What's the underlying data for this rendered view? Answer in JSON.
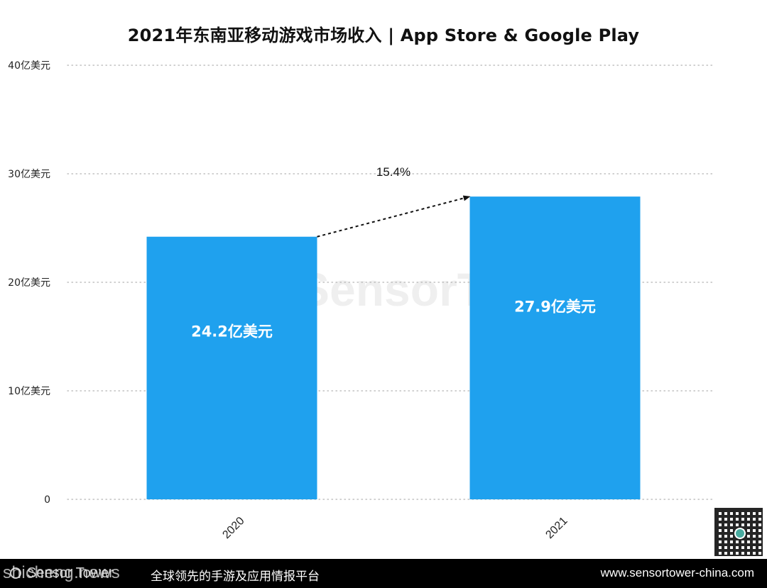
{
  "title": "2021年东南亚移动游戏市场收入 | App Store & Google Play",
  "chart_data": {
    "type": "bar",
    "categories": [
      "2020",
      "2021"
    ],
    "values": [
      24.2,
      27.9
    ],
    "data_labels": [
      "24.2亿美元",
      "27.9亿美元"
    ],
    "ylim": [
      0,
      40
    ],
    "yticks": [
      0,
      10,
      20,
      30,
      40
    ],
    "ytick_labels": [
      "0",
      "10亿美元",
      "20亿美元",
      "30亿美元",
      "40亿美元"
    ],
    "grid": "horizontal dotted",
    "bar_color": "#1fa1ee",
    "annotation": {
      "text": "15.4%",
      "type": "dashed-arrow",
      "from": "2020",
      "to": "2021"
    }
  },
  "watermark": "SensorTower",
  "footer": {
    "brand": "Sensor Tower",
    "slogan": "全球领先的手游及应用情报平台",
    "url": "www.sensortower-china.com"
  },
  "overlay_mark": "shicheng.news"
}
